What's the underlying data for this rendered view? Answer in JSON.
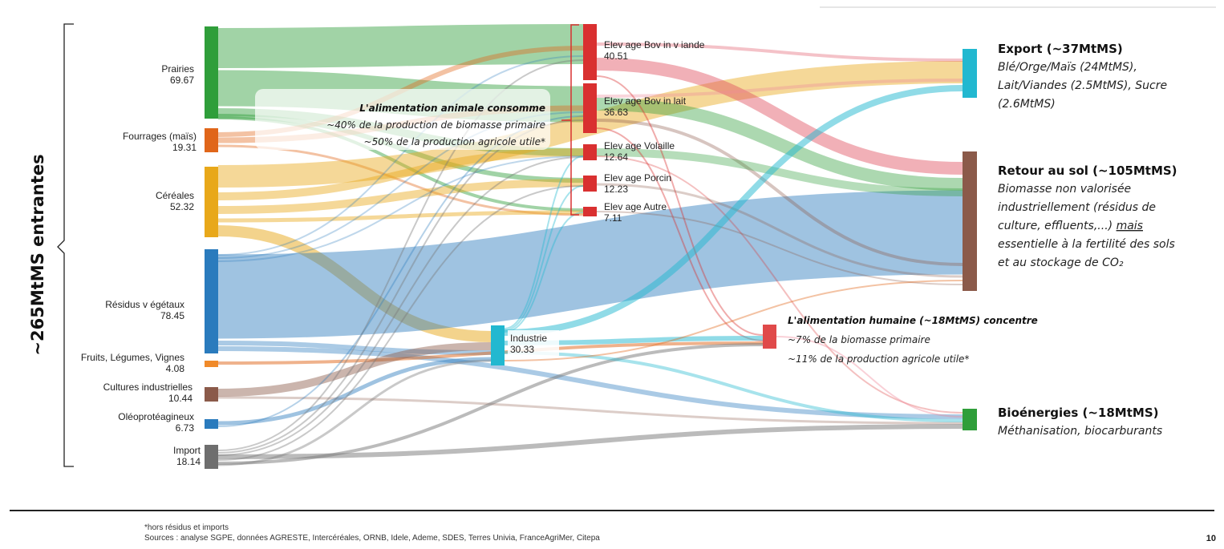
{
  "total_label": "~265MtMS entrantes",
  "sources": [
    {
      "id": "prairies",
      "name": "Prairies",
      "value": "69.67",
      "color": "#2f9e3a"
    },
    {
      "id": "fourrages",
      "name": "Fourrages (maïs)",
      "value": "19.31",
      "color": "#e0661a"
    },
    {
      "id": "cereales",
      "name": "Céréales",
      "value": "52.32",
      "color": "#e8a81a"
    },
    {
      "id": "residus",
      "name": "Résidus v égétaux",
      "value": "78.45",
      "color": "#2a7bbd"
    },
    {
      "id": "fruits",
      "name": "Fruits, Légumes, Vignes",
      "value": "4.08",
      "color": "#f08a2a"
    },
    {
      "id": "cultures",
      "name": "Cultures industrielles",
      "value": "10.44",
      "color": "#8b5a4a"
    },
    {
      "id": "oleo",
      "name": "Oléoprotéagineux",
      "value": "6.73",
      "color": "#2a7bbd"
    },
    {
      "id": "import",
      "name": "Import",
      "value": "18.14",
      "color": "#6e6e6e"
    }
  ],
  "middles": [
    {
      "id": "bovin_viande",
      "name": "Elev age Bov in v iande",
      "value": "40.51",
      "color": "#d93030"
    },
    {
      "id": "bovin_lait",
      "name": "Elev age Bov in lait",
      "value": "36.63",
      "color": "#d93030"
    },
    {
      "id": "volaille",
      "name": "Elev age Volaille",
      "value": "12.64",
      "color": "#d93030"
    },
    {
      "id": "porcin",
      "name": "Elev age Porcin",
      "value": "12.23",
      "color": "#d93030"
    },
    {
      "id": "autre",
      "name": "Elev age Autre",
      "value": "7.11",
      "color": "#d93030"
    },
    {
      "id": "industrie",
      "name": "Industrie",
      "value": "30.33",
      "color": "#22b8d0"
    }
  ],
  "alimentation_humaine": {
    "color": "#e04a4a",
    "title": "L'alimentation humaine (~18MtMS) concentre",
    "line1": "~7% de la biomasse primaire",
    "line2": "~11% de la production agricole utile*"
  },
  "destinations": [
    {
      "id": "export",
      "color": "#22b8d0",
      "title": "Export (~37MtMS)",
      "lines": [
        "Blé/Orge/Maïs (24MtMS),",
        "Lait/Viandes (2.5MtMS), Sucre",
        "(2.6MtMS)"
      ]
    },
    {
      "id": "retour",
      "color": "#8b5a4a",
      "title": "Retour au sol (~105MtMS)",
      "lines": [
        "Biomasse non valorisée",
        "industriellement (résidus de",
        "culture, effluents,...) mais",
        "essentielle à la fertilité des sols",
        "et au stockage de CO₂"
      ]
    },
    {
      "id": "bioenergies",
      "color": "#2f9e3a",
      "title": "Bioénergies (~18MtMS)",
      "lines": [
        "Méthanisation, biocarburants"
      ]
    }
  ],
  "animal_annotation": {
    "line1": "L'alimentation animale consomme",
    "line2": "~40% de la production de biomasse primaire",
    "line3": "~50% de la production agricole utile*"
  },
  "footer": {
    "note": "*hors résidus et imports",
    "sources": "Sources : analyse SGPE, données AGRESTE, Intercéréales, ORNB, Idele, Ademe, SDES, Terres Univia, FranceAgriMer, Citepa",
    "page": "10"
  }
}
